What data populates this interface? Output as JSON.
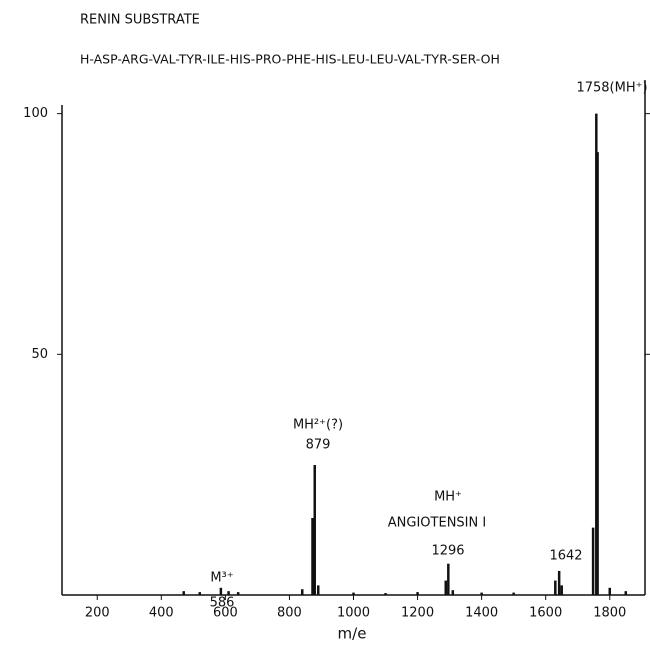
{
  "chart_data": {
    "type": "bar",
    "title": "RENIN SUBSTRATE",
    "subtitle": "H-ASP-ARG-VAL-TYR-ILE-HIS-PRO-PHE-HIS-LEU-LEU-VAL-TYR-SER-OH",
    "x_label": "m/e",
    "x": [
      470,
      520,
      586,
      610,
      640,
      840,
      872,
      879,
      890,
      1000,
      1100,
      1200,
      1288,
      1296,
      1310,
      1400,
      1500,
      1630,
      1642,
      1650,
      1748,
      1758,
      1762,
      1800,
      1850
    ],
    "values": [
      0.8,
      0.6,
      1.5,
      0.8,
      0.6,
      1.2,
      16,
      27,
      2,
      0.5,
      0.4,
      0.6,
      3,
      6.5,
      1,
      0.5,
      0.5,
      3,
      5,
      2,
      14,
      100,
      92,
      1.5,
      0.8
    ],
    "color": "#111111",
    "xlim": [
      90,
      1910
    ],
    "ylim": [
      0,
      102
    ],
    "xticks": [
      200,
      400,
      600,
      800,
      1000,
      1200,
      1400,
      1600,
      1800
    ],
    "yticks": [
      50,
      100
    ],
    "annotations": [
      "M³⁺",
      "586",
      "MH²⁺(?)",
      "879",
      "MH⁺",
      "ANGIOTENSIN I",
      "1296",
      "1642",
      "1758(MH⁺)"
    ]
  }
}
